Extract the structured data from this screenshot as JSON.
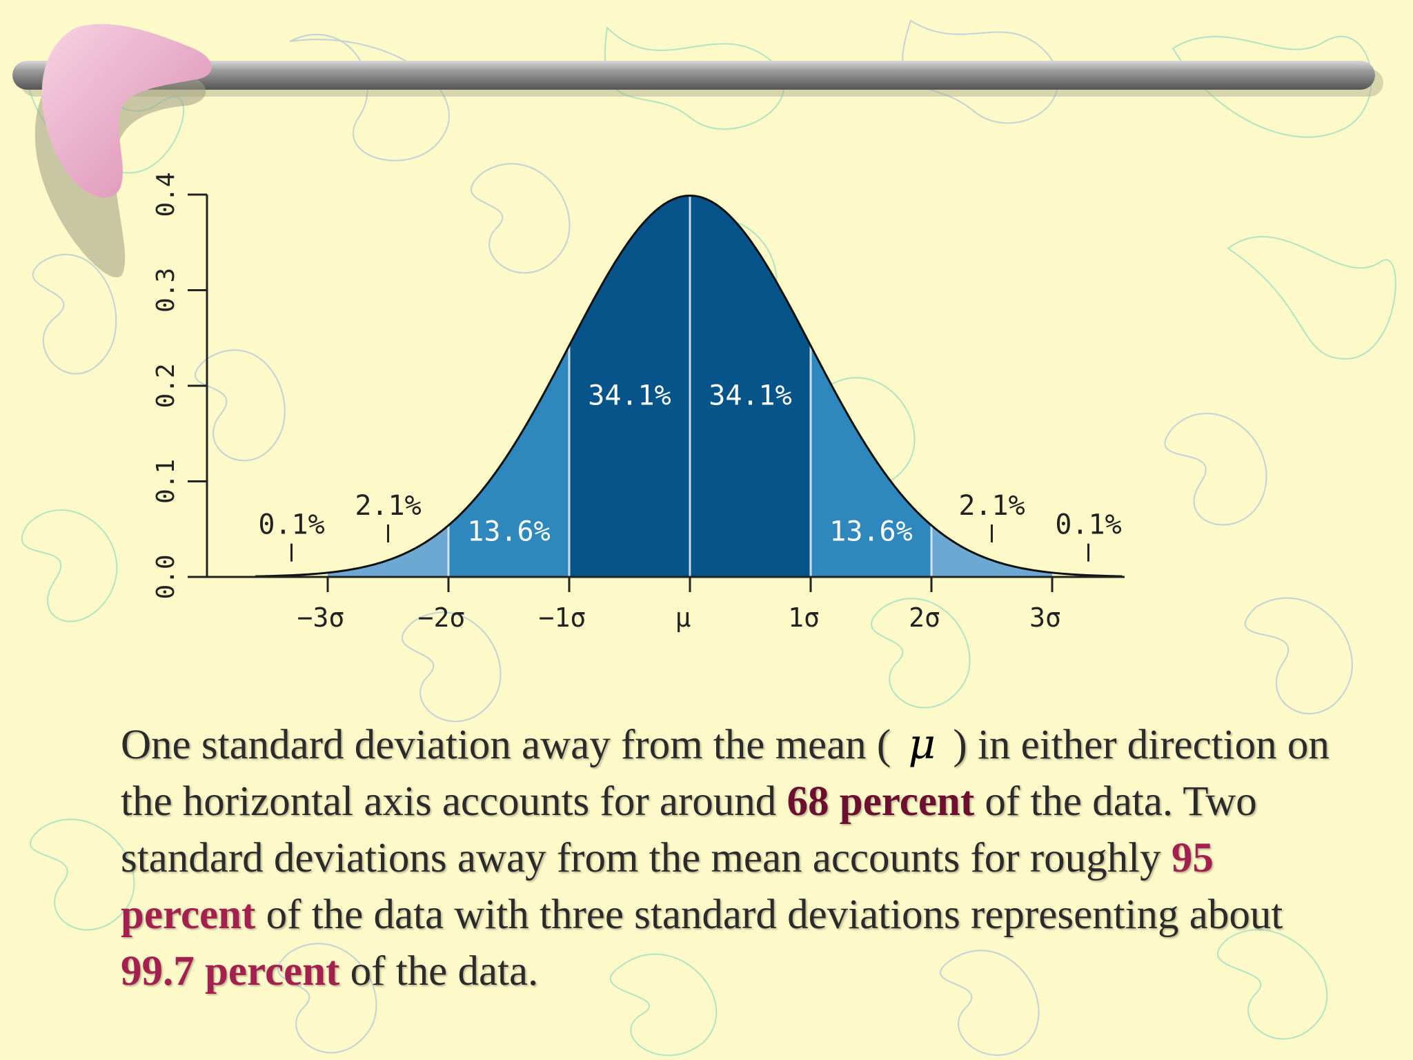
{
  "slide": {
    "caption": {
      "part1": "One standard deviation away from the mean (",
      "mu": "μ",
      "part2": ") in either direction on the horizontal axis accounts for around",
      "hl1": "68 percent",
      "part3": "of the data. Two standard deviations away from the mean accounts for roughly",
      "hl2": "95 percent",
      "part4": "of the data with three standard deviations representing about",
      "hl3": "99.7 percent",
      "part5": "of the data."
    },
    "colors": {
      "background": "#fdf9c8",
      "highlight_dark": "#6d1030",
      "highlight": "#a3204f",
      "band_inner": "#07548a",
      "band_middle": "#2e87bd",
      "band_outer": "#6da8d3",
      "bar": "#8c8c8c",
      "boomerang": "#e8aec8"
    }
  },
  "chart_data": {
    "type": "area",
    "title": "",
    "xlabel": "",
    "ylabel": "",
    "distribution": "standard normal",
    "xlim": [
      -3.6,
      4.0
    ],
    "ylim": [
      0,
      0.4
    ],
    "y_ticks": [
      "0.0",
      "0.1",
      "0.2",
      "0.3",
      "0.4"
    ],
    "y_tick_values": [
      0,
      0.1,
      0.2,
      0.3,
      0.4
    ],
    "x_ticks": [
      "−3σ",
      "−2σ",
      "−1σ",
      "μ",
      "1σ",
      "2σ",
      "3σ"
    ],
    "x_tick_values": [
      -3,
      -2,
      -1,
      0,
      1,
      2,
      3
    ],
    "bands": [
      {
        "from": -4,
        "to": -3,
        "percent_label": "0.1%",
        "shade": "outer"
      },
      {
        "from": -3,
        "to": -2,
        "percent_label": "2.1%",
        "shade": "outer"
      },
      {
        "from": -2,
        "to": -1,
        "percent_label": "13.6%",
        "shade": "middle"
      },
      {
        "from": -1,
        "to": 0,
        "percent_label": "34.1%",
        "shade": "inner"
      },
      {
        "from": 0,
        "to": 1,
        "percent_label": "34.1%",
        "shade": "inner"
      },
      {
        "from": 1,
        "to": 2,
        "percent_label": "13.6%",
        "shade": "middle"
      },
      {
        "from": 2,
        "to": 3,
        "percent_label": "2.1%",
        "shade": "outer"
      },
      {
        "from": 3,
        "to": 4,
        "percent_label": "0.1%",
        "shade": "outer"
      }
    ],
    "grid": false,
    "legend": "none"
  }
}
